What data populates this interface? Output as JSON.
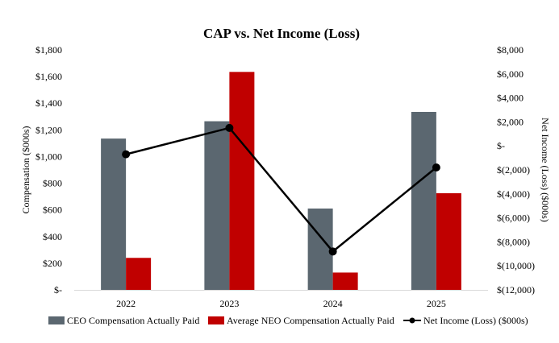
{
  "chart_data": {
    "type": "bar",
    "title": "CAP vs. Net Income (Loss)",
    "categories": [
      "2022",
      "2023",
      "2024",
      "2025"
    ],
    "ylabel": "Compensation ($000s)",
    "y2label": "Net Income (Loss) ($000s)",
    "ylim": [
      0,
      1800
    ],
    "y2lim": [
      -12000,
      8000
    ],
    "yticks": [
      "$-",
      "$200",
      "$400",
      "$600",
      "$800",
      "$1,000",
      "$1,200",
      "$1,400",
      "$1,600",
      "$1,800"
    ],
    "y2ticks": [
      "$(12,000)",
      "$(10,000)",
      "$(8,000)",
      "$(6,000)",
      "$(4,000)",
      "$(2,000)",
      "$-",
      "$2,000",
      "$4,000",
      "$6,000",
      "$8,000"
    ],
    "series": [
      {
        "name": "CEO Compensation Actually Paid",
        "type": "bar",
        "axis": "left",
        "color": "#5b6770",
        "values": [
          1135,
          1265,
          610,
          1335
        ]
      },
      {
        "name": "Average NEO Compensation Actually Paid",
        "type": "bar",
        "axis": "left",
        "color": "#c00000",
        "values": [
          240,
          1635,
          130,
          725
        ]
      },
      {
        "name": "Net Income (Loss) ($000s)",
        "type": "line",
        "axis": "right",
        "color": "#000000",
        "values": [
          -700,
          1500,
          -8800,
          -1800
        ]
      }
    ],
    "legend_position": "bottom"
  }
}
